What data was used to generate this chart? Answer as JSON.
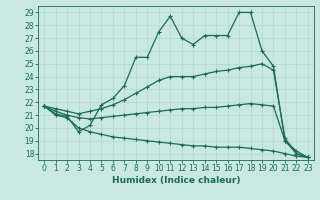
{
  "xlabel": "Humidex (Indice chaleur)",
  "bg_color": "#c8e8e0",
  "line_color": "#1a6b5a",
  "grid_color": "#b0d8d0",
  "xlim": [
    -0.5,
    23.5
  ],
  "ylim": [
    17.5,
    29.5
  ],
  "yticks": [
    18,
    19,
    20,
    21,
    22,
    23,
    24,
    25,
    26,
    27,
    28,
    29
  ],
  "xticks": [
    0,
    1,
    2,
    3,
    4,
    5,
    6,
    7,
    8,
    9,
    10,
    11,
    12,
    13,
    14,
    15,
    16,
    17,
    18,
    19,
    20,
    21,
    22,
    23
  ],
  "lines": [
    {
      "x": [
        0,
        1,
        2,
        3,
        4,
        5,
        6,
        7,
        8,
        9,
        10,
        11,
        12,
        13,
        14,
        15,
        16,
        17,
        18,
        19,
        20,
        21,
        22,
        23
      ],
      "y": [
        21.7,
        21.1,
        20.9,
        19.7,
        20.2,
        21.8,
        22.3,
        23.3,
        25.5,
        25.5,
        27.5,
        28.7,
        27.0,
        26.5,
        27.2,
        27.2,
        27.2,
        29.0,
        29.0,
        26.0,
        24.8,
        19.0,
        18.2,
        17.7
      ]
    },
    {
      "x": [
        0,
        1,
        2,
        3,
        4,
        5,
        6,
        7,
        8,
        9,
        10,
        11,
        12,
        13,
        14,
        15,
        16,
        17,
        18,
        19,
        20,
        21,
        22,
        23
      ],
      "y": [
        21.7,
        21.5,
        21.3,
        21.1,
        21.3,
        21.5,
        21.8,
        22.2,
        22.7,
        23.2,
        23.7,
        24.0,
        24.0,
        24.0,
        24.2,
        24.4,
        24.5,
        24.7,
        24.8,
        25.0,
        24.5,
        19.2,
        18.0,
        17.7
      ]
    },
    {
      "x": [
        0,
        1,
        2,
        3,
        4,
        5,
        6,
        7,
        8,
        9,
        10,
        11,
        12,
        13,
        14,
        15,
        16,
        17,
        18,
        19,
        20,
        21,
        22,
        23
      ],
      "y": [
        21.7,
        21.3,
        21.0,
        20.8,
        20.7,
        20.8,
        20.9,
        21.0,
        21.1,
        21.2,
        21.3,
        21.4,
        21.5,
        21.5,
        21.6,
        21.6,
        21.7,
        21.8,
        21.9,
        21.8,
        21.7,
        19.0,
        18.0,
        17.7
      ]
    },
    {
      "x": [
        0,
        1,
        2,
        3,
        4,
        5,
        6,
        7,
        8,
        9,
        10,
        11,
        12,
        13,
        14,
        15,
        16,
        17,
        18,
        19,
        20,
        21,
        22,
        23
      ],
      "y": [
        21.7,
        21.0,
        20.8,
        20.0,
        19.7,
        19.5,
        19.3,
        19.2,
        19.1,
        19.0,
        18.9,
        18.8,
        18.7,
        18.6,
        18.6,
        18.5,
        18.5,
        18.5,
        18.4,
        18.3,
        18.2,
        18.0,
        17.8,
        17.7
      ]
    }
  ]
}
